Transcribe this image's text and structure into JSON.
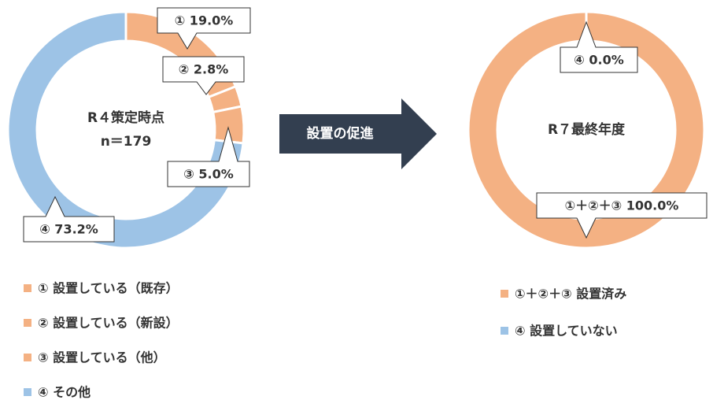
{
  "arrow_label": "設置の促進",
  "chart_data": [
    {
      "type": "pie",
      "donut": true,
      "title_lines": [
        "R４策定時点",
        "n＝179"
      ],
      "categories": [
        "① 設置している（既存）",
        "② 設置している（新設）",
        "③ 設置している（他）",
        "④ その他"
      ],
      "values": [
        19.0,
        2.8,
        5.0,
        73.2
      ],
      "value_labels": [
        "① 19.0%",
        "② 2.8%",
        "③ 5.0%",
        "④ 73.2%"
      ],
      "colors": [
        "#f4b183",
        "#f4b183",
        "#f4b183",
        "#9dc3e6"
      ]
    },
    {
      "type": "pie",
      "donut": true,
      "title_lines": [
        "R７最終年度"
      ],
      "categories": [
        "①＋②＋③ 設置済み",
        "④ 設置していない"
      ],
      "values": [
        100.0,
        0.0
      ],
      "value_labels": [
        "①＋②＋③ 100.0%",
        "④ 0.0%"
      ],
      "colors": [
        "#f4b183",
        "#9dc3e6"
      ]
    }
  ]
}
